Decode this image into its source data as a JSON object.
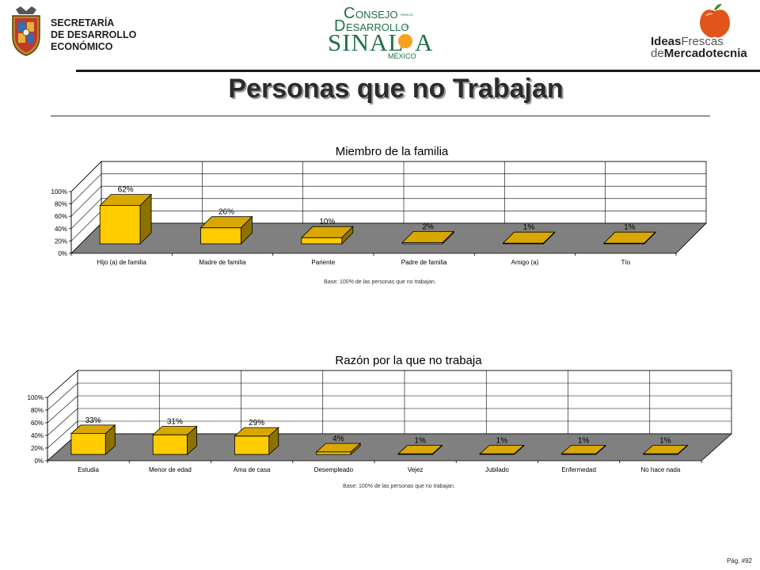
{
  "header": {
    "left_logo": {
      "lines": [
        "SECRETARÍA",
        "DE DESARROLLO",
        "ECONÓMICO"
      ]
    },
    "center_logo": {
      "big1": "C",
      "w1": "ONSEJO",
      "small1": "PARA EL",
      "big2": "D",
      "w2": "ESARROLLO",
      "small2": "DE",
      "word3a": "SINAL",
      "word3b": "A",
      "sub": "MÉXICO"
    },
    "right_logo": {
      "ideas": "Ideas",
      "frescas": "Frescas",
      "de": "de",
      "mercadotecnia": "Mercadotecnia"
    }
  },
  "title": "Personas que no Trabajan",
  "footer": {
    "page": "Pág. #92"
  },
  "colors": {
    "bar_front": "#FFCC00",
    "bar_top": "#D9A800",
    "bar_side": "#8C7000",
    "floor": "#808080",
    "title_shadow": "#9a9a9a"
  },
  "chart_data": [
    {
      "type": "bar",
      "title": "Miembro de la familia",
      "categories": [
        "Hijo (a) de familia",
        "Madre de familia",
        "Pariente",
        "Padre de familia",
        "Amigo (a)",
        "Tío"
      ],
      "values": [
        62,
        26,
        10,
        2,
        1,
        1
      ],
      "value_labels": [
        "62%",
        "26%",
        "10%",
        "2%",
        "1%",
        "1%"
      ],
      "yticks": [
        "0%",
        "20%",
        "40%",
        "60%",
        "80%",
        "100%"
      ],
      "ylim": [
        0,
        100
      ],
      "grid": true,
      "note": "Base: 100% de las personas que no trabajan."
    },
    {
      "type": "bar",
      "title": "Razón por la que no trabaja",
      "categories": [
        "Estudia",
        "Menor de edad",
        "Ama de casa",
        "Desempleado",
        "Vejez",
        "Jubilado",
        "Enfermedad",
        "No hace nada"
      ],
      "values": [
        33,
        31,
        29,
        4,
        1,
        1,
        1,
        1
      ],
      "value_labels": [
        "33%",
        "31%",
        "29%",
        "4%",
        "1%",
        "1%",
        "1%",
        "1%"
      ],
      "yticks": [
        "0%",
        "20%",
        "40%",
        "60%",
        "80%",
        "100%"
      ],
      "ylim": [
        0,
        100
      ],
      "grid": true,
      "note": "Base: 100% de las personas que no trabajan."
    }
  ]
}
